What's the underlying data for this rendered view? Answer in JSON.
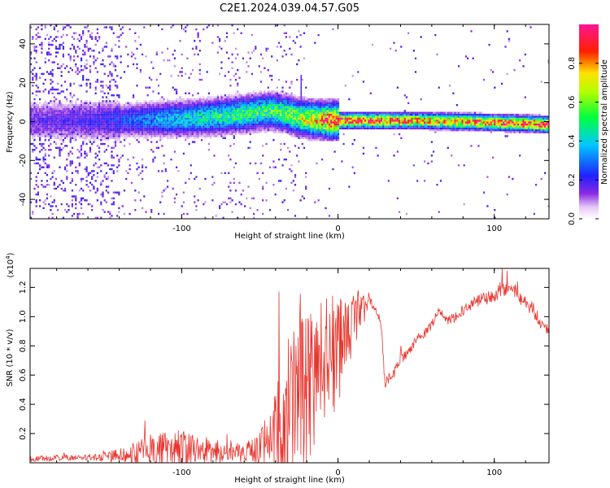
{
  "title": "C2E1.2024.039.04.57.G05",
  "chart_data": [
    {
      "type": "heatmap",
      "title": "",
      "xlabel": "Height of straight line (km)",
      "ylabel": "Frequency (Hz)",
      "xlim": [
        -197,
        135
      ],
      "ylim": [
        -50,
        50
      ],
      "xticks": [
        -100,
        0,
        100
      ],
      "yticks": [
        -40,
        -20,
        0,
        20,
        40
      ],
      "colorbar": {
        "label": "Normalized spectral amplitude",
        "range": [
          0,
          1
        ],
        "ticks": [
          0.0,
          0.2,
          0.4,
          0.6,
          0.8
        ],
        "colormap": "rainbow (white → violet → blue → cyan → green → yellow → red → magenta)"
      },
      "ridge": {
        "description": "spectral ridge near 0 Hz, noisy at low heights, sharp and strong above 0 km",
        "centre_hz": [
          [
            -197,
            0
          ],
          [
            -150,
            0
          ],
          [
            -120,
            0.5
          ],
          [
            -100,
            1
          ],
          [
            -80,
            2
          ],
          [
            -60,
            3.5
          ],
          [
            -45,
            5
          ],
          [
            -35,
            4
          ],
          [
            -25,
            1.5
          ],
          [
            -15,
            0.5
          ],
          [
            0,
            0
          ],
          [
            50,
            0
          ],
          [
            100,
            -1
          ],
          [
            135,
            -2
          ]
        ],
        "amplitude": [
          [
            -197,
            0.15
          ],
          [
            -150,
            0.2
          ],
          [
            -120,
            0.32
          ],
          [
            -100,
            0.4
          ],
          [
            -80,
            0.45
          ],
          [
            -60,
            0.5
          ],
          [
            -40,
            0.52
          ],
          [
            -25,
            0.62
          ],
          [
            -10,
            0.8
          ],
          [
            0,
            0.9
          ],
          [
            30,
            0.85
          ],
          [
            60,
            0.78
          ],
          [
            100,
            0.85
          ],
          [
            135,
            0.92
          ]
        ]
      }
    },
    {
      "type": "line",
      "title": "",
      "xlabel": "Height of straight line (km)",
      "ylabel": "SNR (10 * v/v)",
      "yscale_label": "(x10^4)",
      "xlim": [
        -197,
        135
      ],
      "ylim": [
        0,
        1.33
      ],
      "xticks": [
        -100,
        0,
        100
      ],
      "yticks": [
        0.2,
        0.4,
        0.6,
        0.8,
        1.0,
        1.2
      ],
      "ytick_labels": [
        "0.2",
        "0.4",
        "0.6",
        "0.8",
        "1.0",
        "1.2"
      ],
      "color": "#e8352e",
      "series_envelope": {
        "x": [
          -197,
          -180,
          -160,
          -140,
          -130,
          -120,
          -110,
          -100,
          -90,
          -80,
          -70,
          -60,
          -55,
          -50,
          -45,
          -40,
          -35,
          -30,
          -25,
          -20,
          -15,
          -10,
          -5,
          0,
          5,
          10,
          15,
          20,
          25,
          28,
          30,
          35,
          40,
          45,
          50,
          55,
          60,
          65,
          70,
          75,
          80,
          85,
          90,
          95,
          100,
          105,
          110,
          115,
          120,
          125,
          130,
          135
        ],
        "base": [
          0.03,
          0.035,
          0.04,
          0.05,
          0.07,
          0.1,
          0.1,
          0.1,
          0.1,
          0.09,
          0.08,
          0.08,
          0.1,
          0.12,
          0.15,
          0.2,
          0.3,
          0.45,
          0.55,
          0.5,
          0.6,
          0.7,
          0.8,
          0.75,
          0.85,
          1.0,
          1.05,
          1.12,
          1.05,
          0.9,
          0.55,
          0.6,
          0.72,
          0.75,
          0.85,
          0.88,
          0.95,
          1.05,
          0.98,
          1.0,
          1.05,
          1.08,
          1.12,
          1.13,
          1.15,
          1.2,
          1.22,
          1.15,
          1.1,
          1.05,
          0.95,
          0.9
        ],
        "spread": [
          0.02,
          0.02,
          0.02,
          0.05,
          0.08,
          0.12,
          0.12,
          0.14,
          0.1,
          0.08,
          0.07,
          0.08,
          0.1,
          0.15,
          0.2,
          0.3,
          0.55,
          0.5,
          0.6,
          0.7,
          0.55,
          0.45,
          0.4,
          0.4,
          0.35,
          0.2,
          0.15,
          0.05,
          0.04,
          0.04,
          0.04,
          0.04,
          0.04,
          0.03,
          0.03,
          0.03,
          0.03,
          0.03,
          0.03,
          0.04,
          0.04,
          0.04,
          0.05,
          0.05,
          0.05,
          0.06,
          0.06,
          0.05,
          0.05,
          0.05,
          0.04,
          0.04
        ]
      }
    }
  ]
}
